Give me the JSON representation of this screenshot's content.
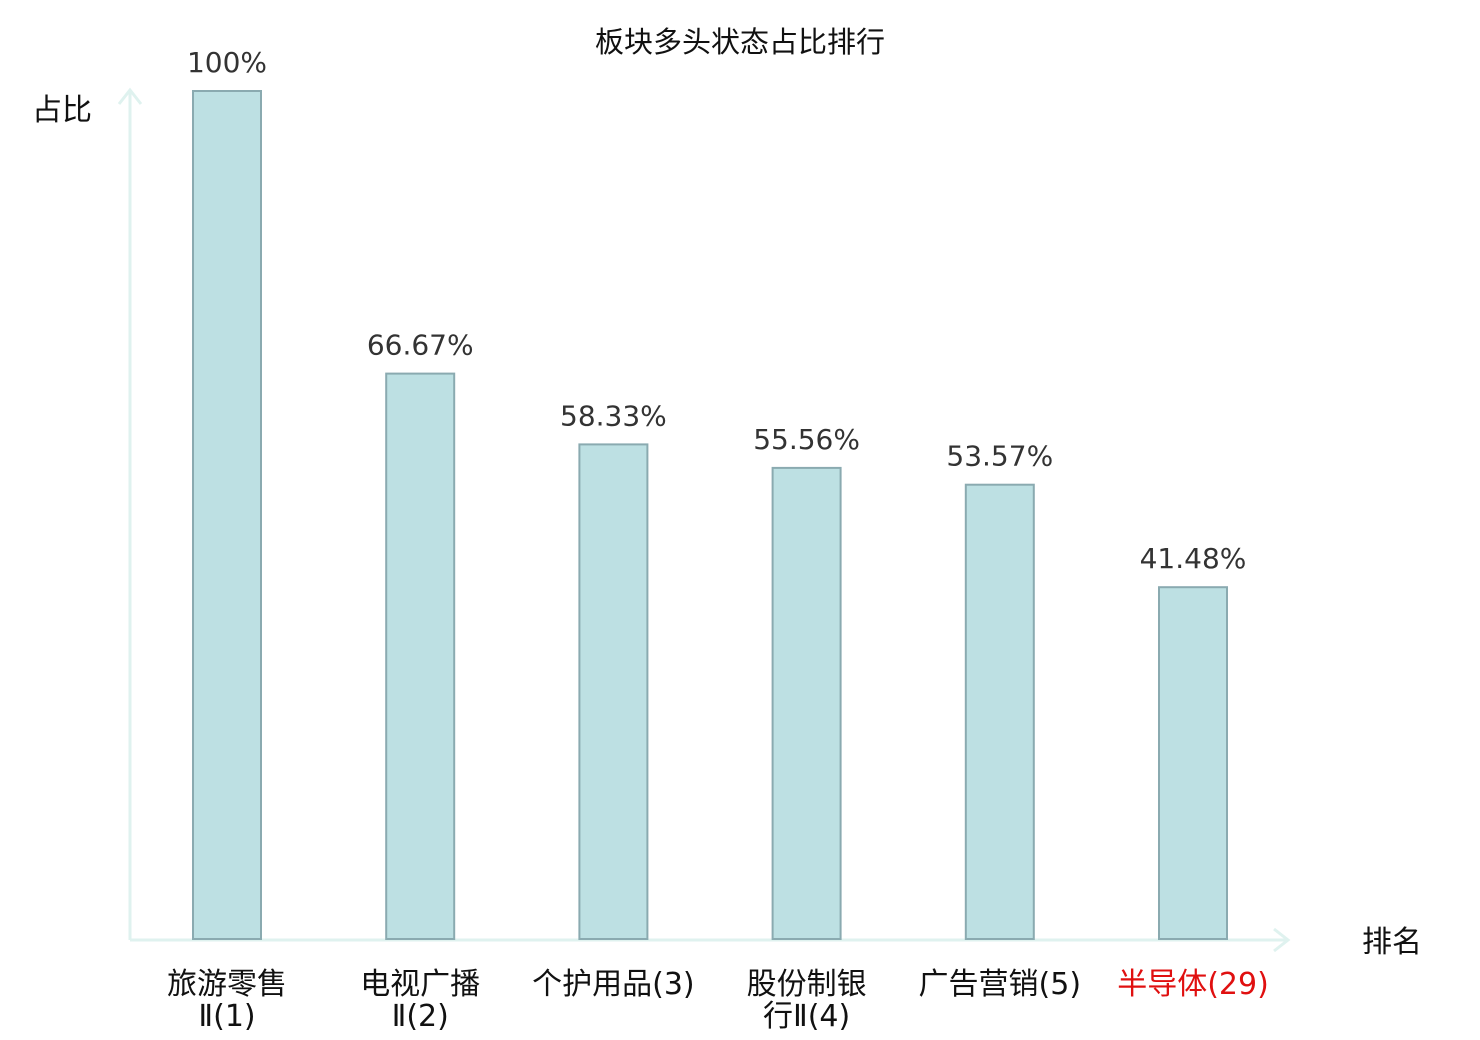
{
  "chart_data": {
    "type": "bar",
    "title": "板块多头状态占比排行",
    "ylabel": "占比",
    "xlabel": "排名",
    "ylim": [
      0,
      100
    ],
    "grid": false,
    "categories": [
      [
        "旅游零售",
        "Ⅱ(1)"
      ],
      [
        "电视广播",
        "Ⅱ(2)"
      ],
      [
        "个护用品(3)"
      ],
      [
        "股份制银",
        "行Ⅱ(4)"
      ],
      [
        "广告营销(5)"
      ],
      [
        "半导体(29)"
      ]
    ],
    "values": [
      100,
      66.67,
      58.33,
      55.56,
      53.57,
      41.48
    ],
    "value_labels": [
      "100%",
      "66.67%",
      "58.33%",
      "55.56%",
      "53.57%",
      "41.48%"
    ],
    "highlight_index": 5,
    "colors": {
      "bar_fill": "#bde0e3",
      "bar_stroke": "#8aaab0",
      "axis": "#dff2ef",
      "label": "#111111",
      "highlight_label": "#e01010",
      "value_label": "#333333"
    }
  }
}
